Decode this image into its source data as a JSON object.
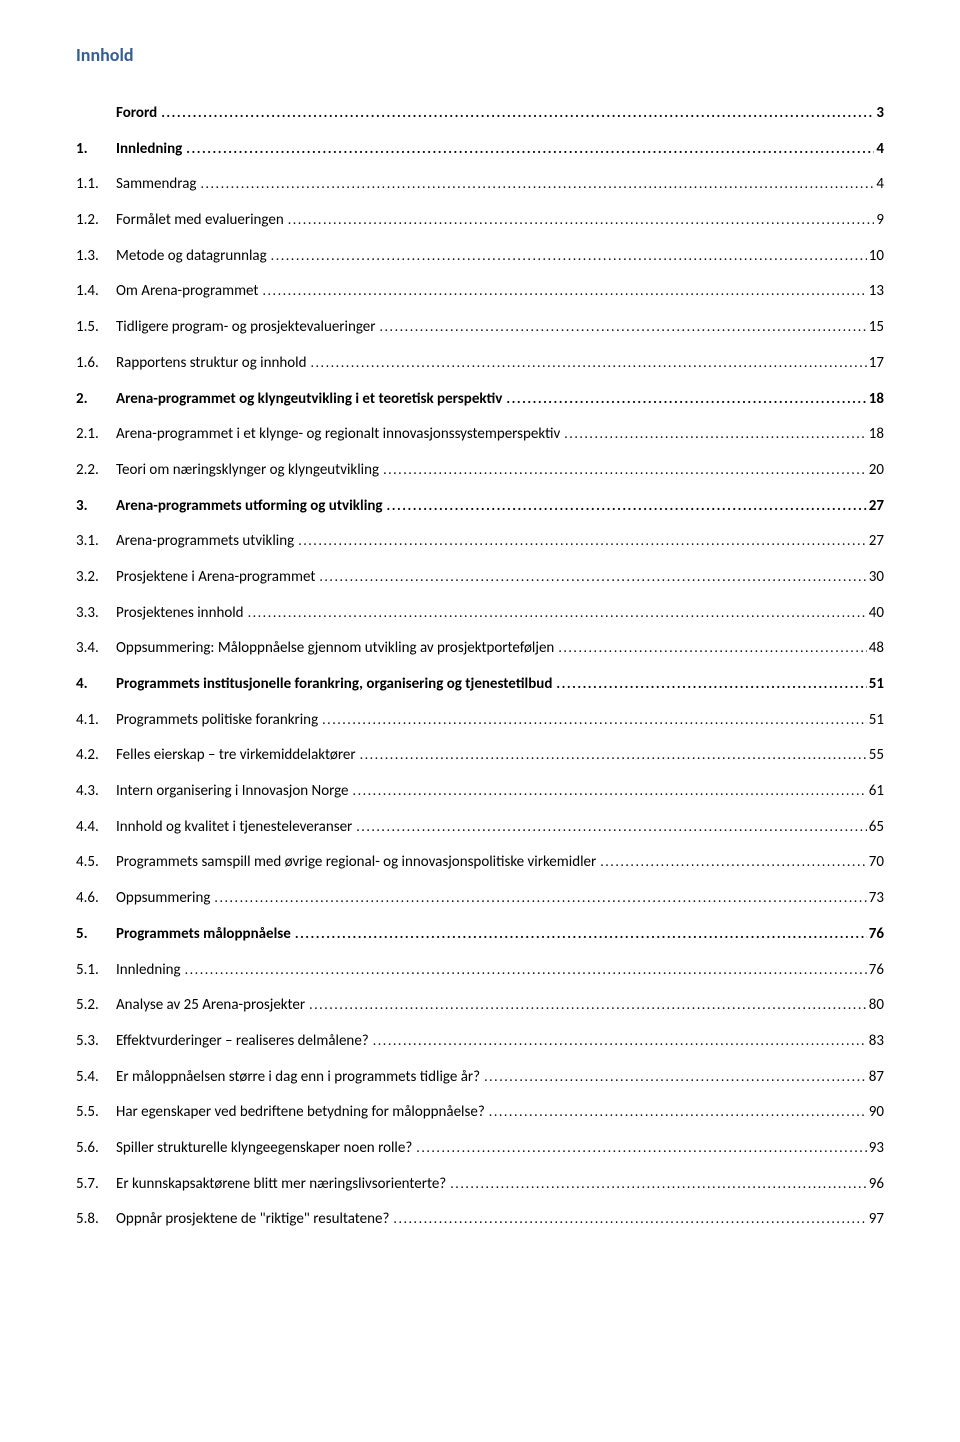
{
  "title": "Innhold",
  "colors": {
    "title": "#365f91",
    "text": "#000000",
    "background": "#ffffff"
  },
  "typography": {
    "title_fontsize": 18,
    "body_fontsize": 15,
    "font_family": "Calibri"
  },
  "toc": [
    {
      "num": "",
      "label": "Forord",
      "page": "3",
      "bold": true,
      "indent": 0
    },
    {
      "num": "1.",
      "label": "Innledning",
      "page": "4",
      "bold": true,
      "indent": 0
    },
    {
      "num": "1.1.",
      "label": "Sammendrag",
      "page": "4",
      "bold": false,
      "indent": 1
    },
    {
      "num": "1.2.",
      "label": "Formålet med evalueringen",
      "page": "9",
      "bold": false,
      "indent": 1
    },
    {
      "num": "1.3.",
      "label": "Metode og datagrunnlag",
      "page": "10",
      "bold": false,
      "indent": 1
    },
    {
      "num": "1.4.",
      "label": "Om Arena-programmet",
      "page": "13",
      "bold": false,
      "indent": 1
    },
    {
      "num": "1.5.",
      "label": "Tidligere program- og prosjektevalueringer",
      "page": "15",
      "bold": false,
      "indent": 1
    },
    {
      "num": "1.6.",
      "label": "Rapportens struktur og innhold",
      "page": "17",
      "bold": false,
      "indent": 1
    },
    {
      "num": "2.",
      "label": "Arena-programmet og klyngeutvikling i et teoretisk perspektiv",
      "page": "18",
      "bold": true,
      "indent": 0
    },
    {
      "num": "2.1.",
      "label": "Arena-programmet i et klynge- og regionalt innovasjonssystemperspektiv",
      "page": "18",
      "bold": false,
      "indent": 1
    },
    {
      "num": "2.2.",
      "label": "Teori om næringsklynger og klyngeutvikling",
      "page": "20",
      "bold": false,
      "indent": 1
    },
    {
      "num": "3.",
      "label": "Arena-programmets utforming og utvikling",
      "page": "27",
      "bold": true,
      "indent": 0
    },
    {
      "num": "3.1.",
      "label": "Arena-programmets utvikling",
      "page": "27",
      "bold": false,
      "indent": 1
    },
    {
      "num": "3.2.",
      "label": "Prosjektene i Arena-programmet",
      "page": "30",
      "bold": false,
      "indent": 1
    },
    {
      "num": "3.3.",
      "label": "Prosjektenes innhold",
      "page": "40",
      "bold": false,
      "indent": 1
    },
    {
      "num": "3.4.",
      "label": "Oppsummering: Måloppnåelse gjennom utvikling av prosjektporteføljen",
      "page": "48",
      "bold": false,
      "indent": 1
    },
    {
      "num": "4.",
      "label": "Programmets institusjonelle forankring, organisering og tjenestetilbud",
      "page": "51",
      "bold": true,
      "indent": 0
    },
    {
      "num": "4.1.",
      "label": "Programmets politiske forankring",
      "page": "51",
      "bold": false,
      "indent": 1
    },
    {
      "num": "4.2.",
      "label": "Felles eierskap – tre virkemiddelaktører",
      "page": "55",
      "bold": false,
      "indent": 1
    },
    {
      "num": "4.3.",
      "label": "Intern organisering i Innovasjon Norge",
      "page": "61",
      "bold": false,
      "indent": 1
    },
    {
      "num": "4.4.",
      "label": "Innhold og kvalitet i tjenesteleveranser",
      "page": "65",
      "bold": false,
      "indent": 1
    },
    {
      "num": "4.5.",
      "label": "Programmets samspill med øvrige regional- og innovasjonspolitiske virkemidler",
      "page": "70",
      "bold": false,
      "indent": 1
    },
    {
      "num": "4.6.",
      "label": "Oppsummering",
      "page": "73",
      "bold": false,
      "indent": 1
    },
    {
      "num": "5.",
      "label": "Programmets måloppnåelse",
      "page": "76",
      "bold": true,
      "indent": 0
    },
    {
      "num": "5.1.",
      "label": "Innledning",
      "page": "76",
      "bold": false,
      "indent": 1
    },
    {
      "num": "5.2.",
      "label": "Analyse av 25 Arena-prosjekter",
      "page": "80",
      "bold": false,
      "indent": 1
    },
    {
      "num": "5.3.",
      "label": "Effektvurderinger – realiseres delmålene?",
      "page": "83",
      "bold": false,
      "indent": 1
    },
    {
      "num": "5.4.",
      "label": "Er måloppnåelsen større i dag enn i programmets tidlige år?",
      "page": "87",
      "bold": false,
      "indent": 1
    },
    {
      "num": "5.5.",
      "label": "Har egenskaper ved bedriftene betydning for måloppnåelse?",
      "page": "90",
      "bold": false,
      "indent": 1
    },
    {
      "num": "5.6.",
      "label": "Spiller strukturelle klyngeegenskaper noen rolle?",
      "page": "93",
      "bold": false,
      "indent": 1
    },
    {
      "num": "5.7.",
      "label": "Er kunnskapsaktørene blitt mer næringslivsorienterte?",
      "page": "96",
      "bold": false,
      "indent": 1
    },
    {
      "num": "5.8.",
      "label": "Oppnår prosjektene de \"riktige\" resultatene?",
      "page": "97",
      "bold": false,
      "indent": 1
    }
  ],
  "leader_char": "."
}
